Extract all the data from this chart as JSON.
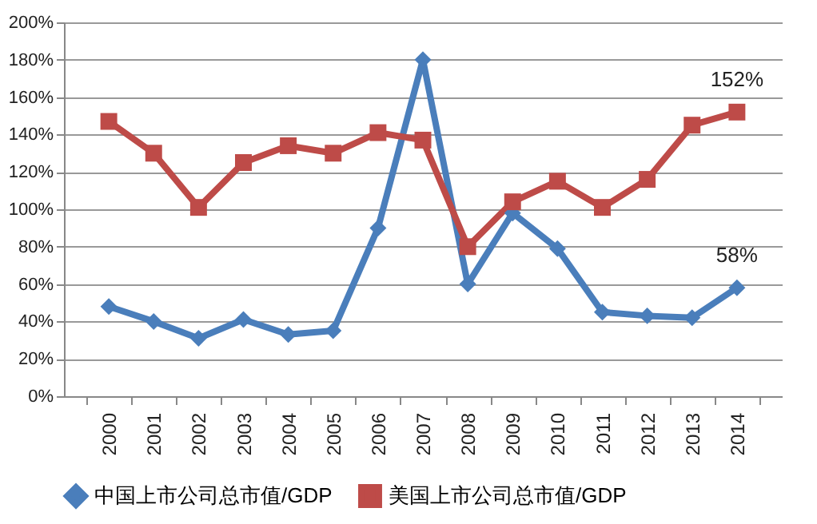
{
  "chart_data": {
    "type": "line",
    "categories": [
      "2000",
      "2001",
      "2002",
      "2003",
      "2004",
      "2005",
      "2006",
      "2007",
      "2008",
      "2009",
      "2010",
      "2011",
      "2012",
      "2013",
      "2014"
    ],
    "series": [
      {
        "name": "中国上市公司总市值/GDP",
        "color": "#4a7ebb",
        "marker": "diamond",
        "values": [
          48,
          40,
          31,
          41,
          33,
          35,
          90,
          180,
          60,
          98,
          79,
          45,
          43,
          42,
          58
        ]
      },
      {
        "name": "美国上市公司总市值/GDP",
        "color": "#be4b48",
        "marker": "square",
        "values": [
          147,
          130,
          101,
          125,
          134,
          130,
          141,
          137,
          80,
          104,
          115,
          101,
          116,
          145,
          152
        ]
      }
    ],
    "ylim": [
      0,
      200
    ],
    "yticks": [
      {
        "value": 0,
        "label": "0%"
      },
      {
        "value": 20,
        "label": "20%"
      },
      {
        "value": 40,
        "label": "40%"
      },
      {
        "value": 60,
        "label": "60%"
      },
      {
        "value": 80,
        "label": "80%"
      },
      {
        "value": 100,
        "label": "100%"
      },
      {
        "value": 120,
        "label": "120%"
      },
      {
        "value": 140,
        "label": "140%"
      },
      {
        "value": 160,
        "label": "160%"
      },
      {
        "value": 180,
        "label": "180%"
      },
      {
        "value": 200,
        "label": "200%"
      }
    ],
    "annotations": [
      {
        "text": "152%",
        "x": "2014",
        "y": 152
      },
      {
        "text": "58%",
        "x": "2014",
        "y": 58
      }
    ],
    "grid": "y",
    "legend": "bottom",
    "line_style": "solid"
  }
}
